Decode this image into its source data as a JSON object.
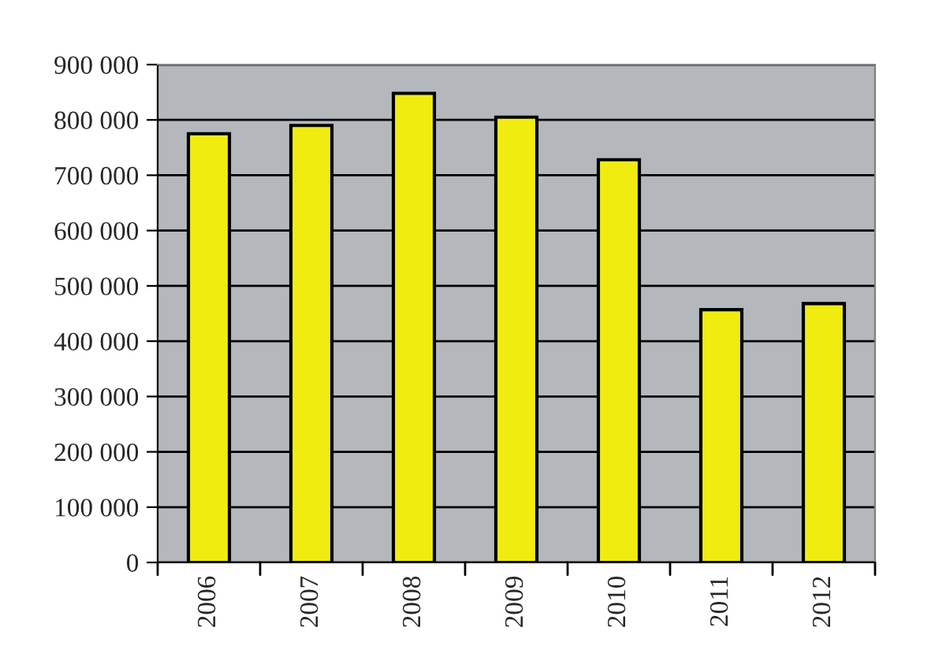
{
  "chart_data": {
    "type": "bar",
    "categories": [
      "2006",
      "2007",
      "2008",
      "2009",
      "2010",
      "2011",
      "2012"
    ],
    "values": [
      775000,
      790000,
      848000,
      805000,
      728000,
      457000,
      468000
    ],
    "color": "#f0ec10",
    "ylim": [
      0,
      900000
    ],
    "yticks": [
      {
        "value": 0,
        "label": "0"
      },
      {
        "value": 100000,
        "label": "100 000"
      },
      {
        "value": 200000,
        "label": "200 000"
      },
      {
        "value": 300000,
        "label": "300 000"
      },
      {
        "value": 400000,
        "label": "400 000"
      },
      {
        "value": 500000,
        "label": "500 000"
      },
      {
        "value": 600000,
        "label": "600 000"
      },
      {
        "value": 700000,
        "label": "700 000"
      },
      {
        "value": 800000,
        "label": "800 000"
      },
      {
        "value": 900000,
        "label": "900 000"
      }
    ],
    "grid": "y"
  }
}
